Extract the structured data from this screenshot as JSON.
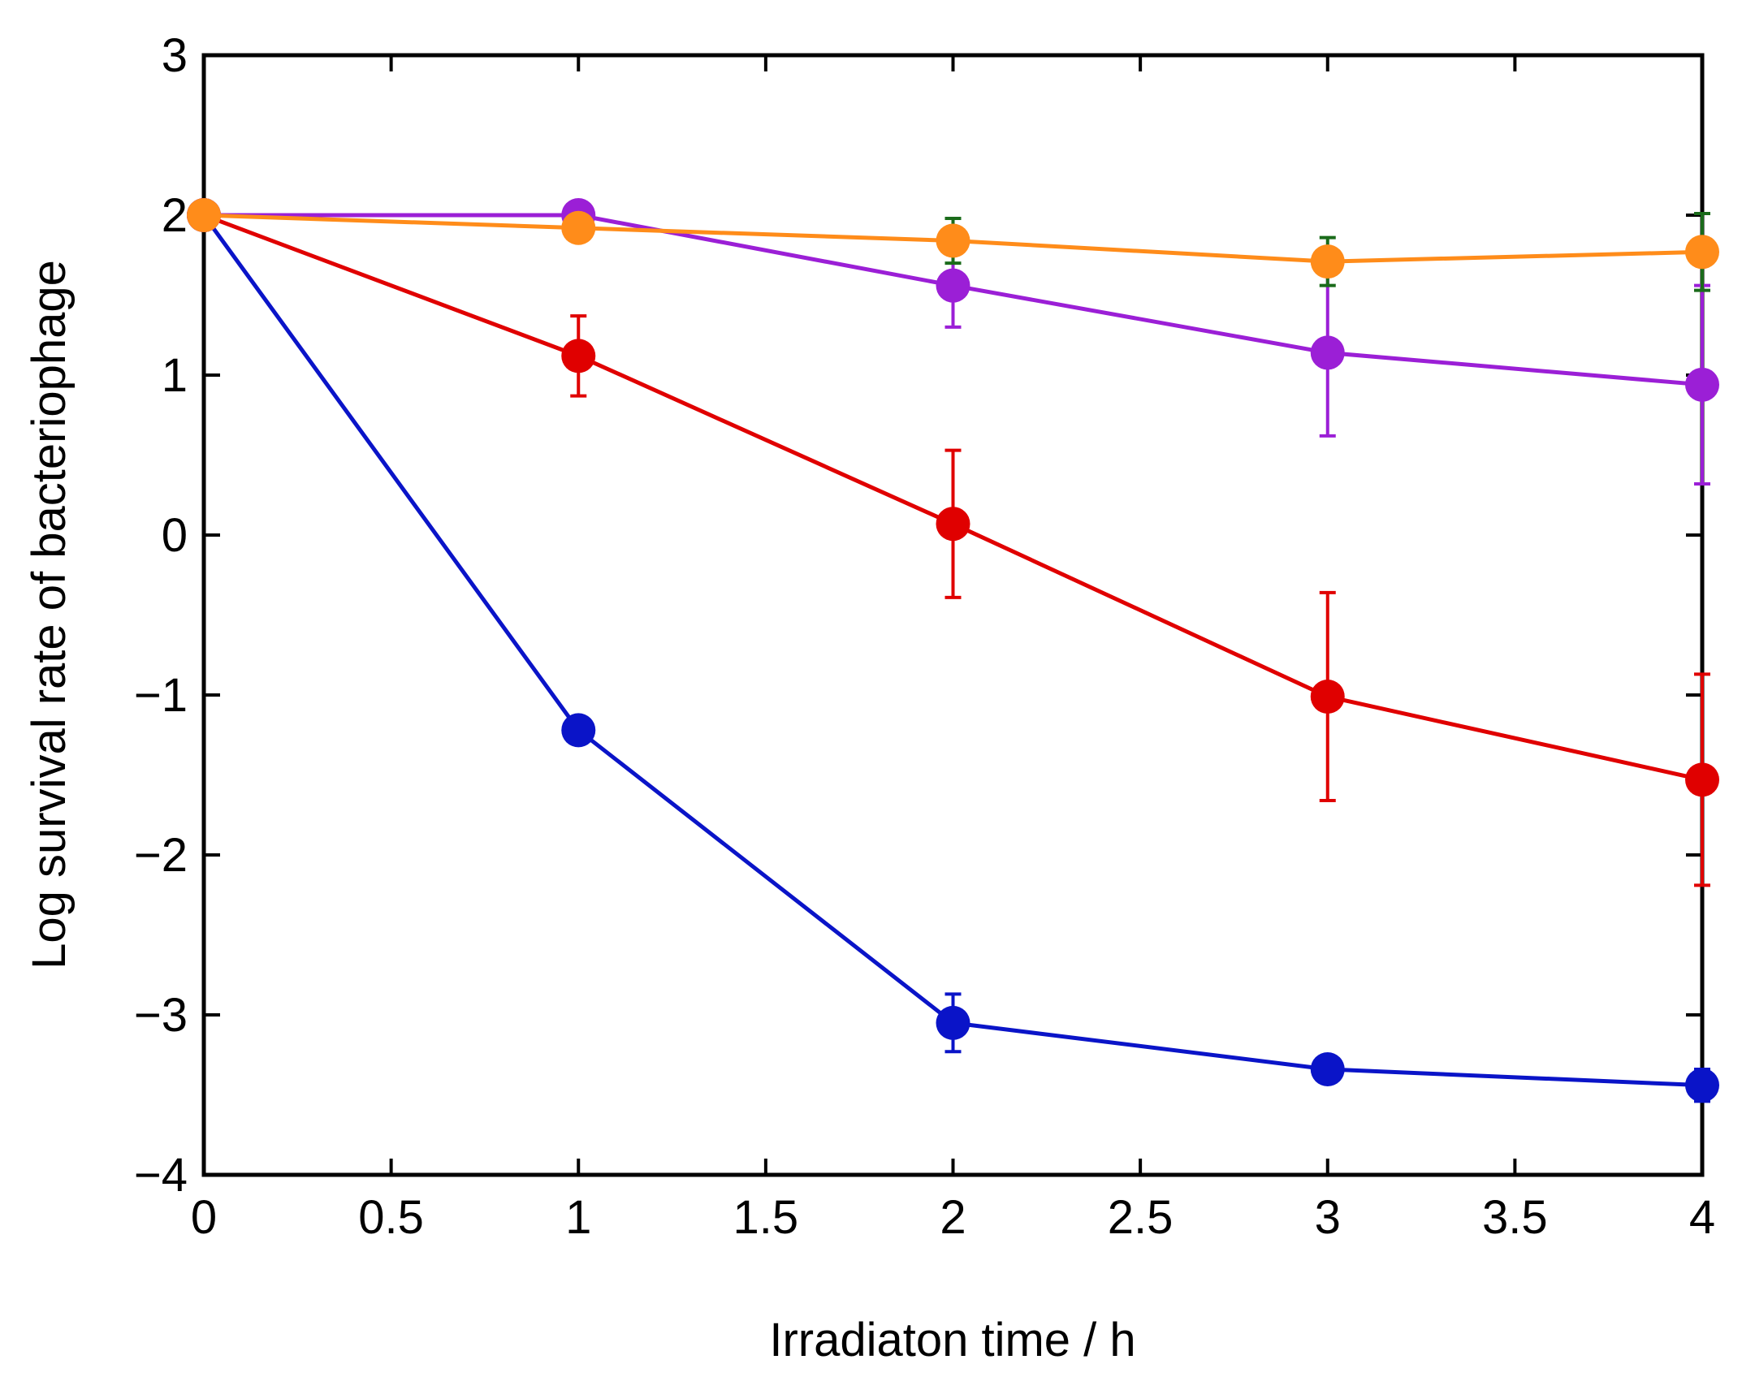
{
  "chart_data": {
    "type": "line",
    "title": "",
    "xlabel": "Irradiaton time / h",
    "ylabel": "Log survival rate of bacteriophage",
    "xlim": [
      0,
      4
    ],
    "ylim": [
      -4,
      3
    ],
    "grid": false,
    "x_ticks": [
      0,
      0.5,
      1,
      1.5,
      2,
      2.5,
      3,
      3.5,
      4
    ],
    "x_tick_labels": [
      "0",
      "0.5",
      "1",
      "1.5",
      "2",
      "2.5",
      "3",
      "3.5",
      "4"
    ],
    "y_ticks": [
      3,
      2,
      1,
      0,
      -1,
      -2,
      -3,
      -4
    ],
    "y_tick_labels": [
      "3",
      "2",
      "1",
      "0",
      "−1",
      "−2",
      "−3",
      "−4"
    ],
    "series": [
      {
        "name": "orange",
        "color": "#ff8c1a",
        "errorbar_color": "#1a6b1a",
        "x": [
          0,
          1,
          2,
          3,
          4
        ],
        "y": [
          2.0,
          1.92,
          1.84,
          1.71,
          1.77
        ],
        "yerr": [
          0,
          0.08,
          0.14,
          0.15,
          0.24
        ]
      },
      {
        "name": "purple",
        "color": "#9b1fd6",
        "errorbar_color": "#9b1fd6",
        "x": [
          0,
          1,
          2,
          3,
          4
        ],
        "y": [
          2.0,
          2.0,
          1.56,
          1.14,
          0.94
        ],
        "yerr": [
          0,
          0.02,
          0.26,
          0.52,
          0.62
        ]
      },
      {
        "name": "red",
        "color": "#e00000",
        "errorbar_color": "#e00000",
        "x": [
          0,
          1,
          2,
          3,
          4
        ],
        "y": [
          2.0,
          1.12,
          0.07,
          -1.01,
          -1.53
        ],
        "yerr": [
          0,
          0.25,
          0.46,
          0.65,
          0.66
        ]
      },
      {
        "name": "blue",
        "color": "#0a14c8",
        "errorbar_color": "#0a14c8",
        "x": [
          0,
          1,
          2,
          3,
          4
        ],
        "y": [
          2.0,
          -1.22,
          -3.05,
          -3.34,
          -3.44
        ],
        "yerr": [
          0,
          0.06,
          0.18,
          0.05,
          0.1
        ]
      }
    ]
  }
}
